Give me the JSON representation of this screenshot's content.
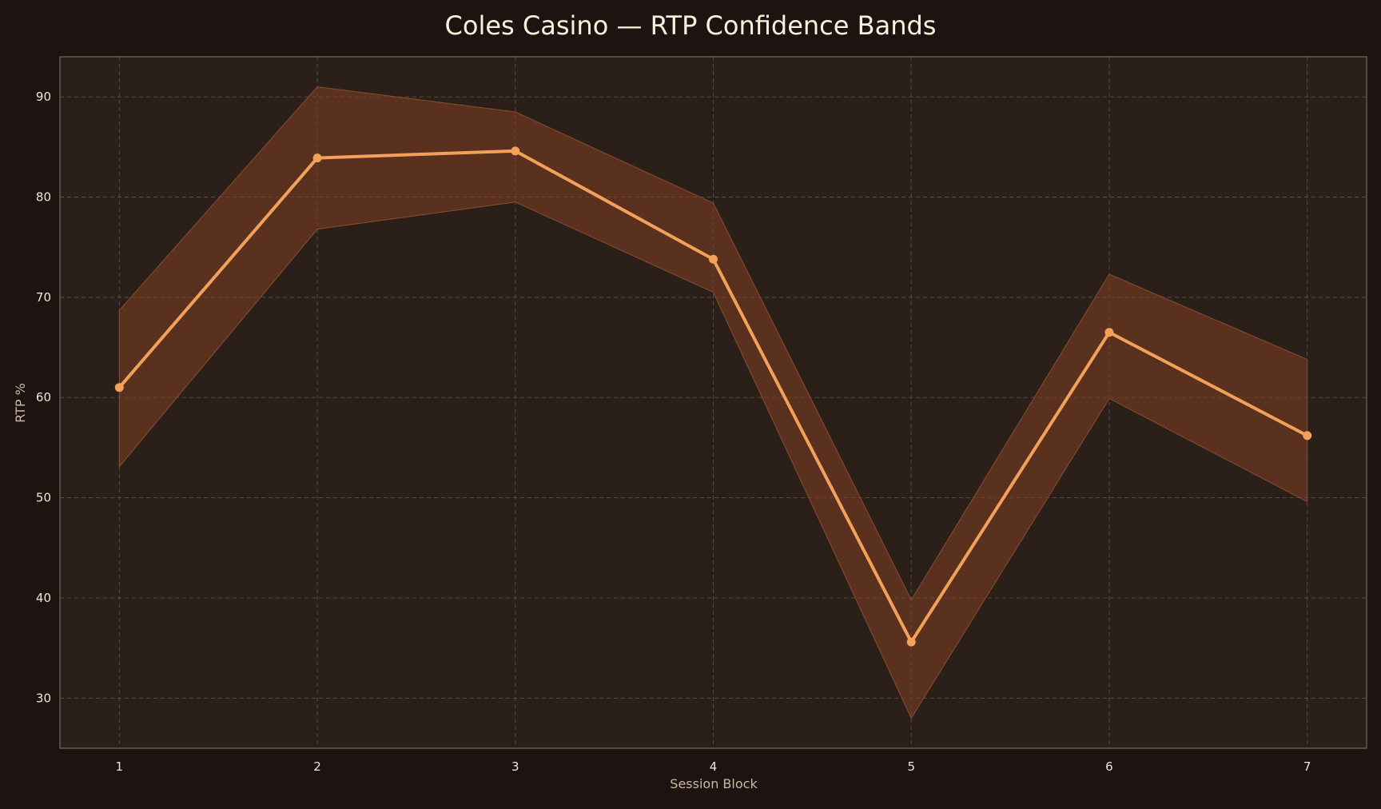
{
  "colors": {
    "page_background": "#1c1411",
    "plot_background": "#2b1f19",
    "plot_border": "#8a7868",
    "grid": "#5e5044",
    "band_fill": "#7a3e22",
    "band_edge": "#8a4d30",
    "line": "#f2a05a",
    "marker": "#f2a05a",
    "title_text": "#fff0dc",
    "tick_text": "#f3e6d6",
    "axis_label_text": "#cfb79f"
  },
  "chart_data": {
    "type": "line",
    "title": "Coles Casino — RTP Confidence Bands",
    "xlabel": "Session Block",
    "ylabel": "RTP %",
    "x": [
      1,
      2,
      3,
      4,
      5,
      6,
      7
    ],
    "xlim": [
      0.7,
      7.3
    ],
    "ylim": [
      25,
      94
    ],
    "xticks": [
      1,
      2,
      3,
      4,
      5,
      6,
      7
    ],
    "yticks": [
      30,
      40,
      50,
      60,
      70,
      80,
      90
    ],
    "grid": true,
    "grid_style": "dashed",
    "series": [
      {
        "values": [
          61.0,
          83.9,
          84.6,
          73.8,
          35.6,
          66.5,
          56.2
        ],
        "lower": [
          53.1,
          76.8,
          79.5,
          70.5,
          28.0,
          59.9,
          49.6
        ],
        "upper": [
          68.7,
          91.0,
          88.5,
          79.4,
          39.8,
          72.3,
          63.8
        ]
      }
    ]
  }
}
